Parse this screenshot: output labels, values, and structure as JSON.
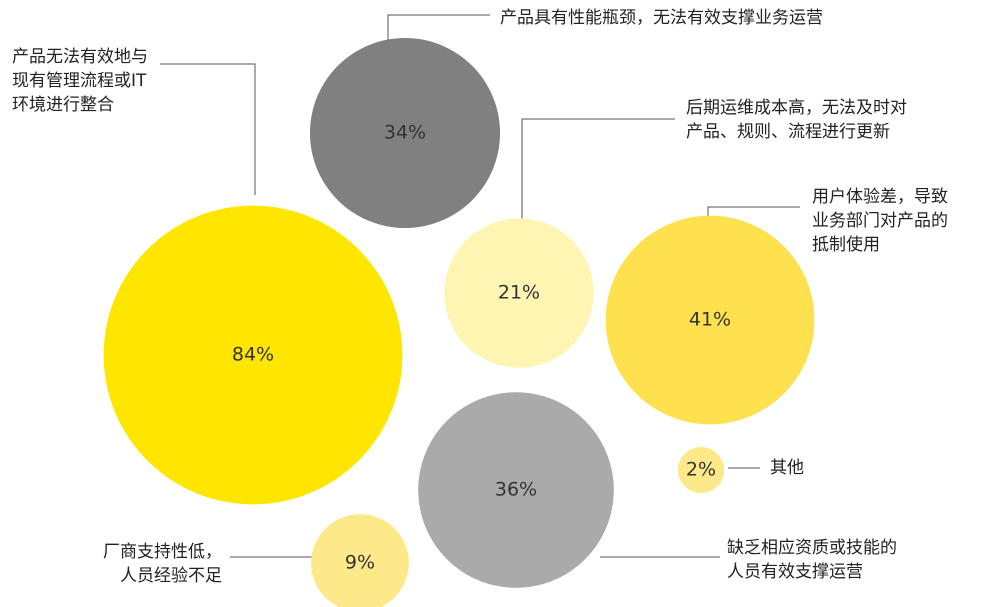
{
  "chart_data": {
    "type": "bubble",
    "items": [
      {
        "label_lines": [
          "产品无法有效地与",
          "现有管理流程或IT",
          "环境进行整合"
        ],
        "value": 84,
        "value_label": "84%",
        "color": "#ffe600"
      },
      {
        "label_lines": [
          "产品具有性能瓶颈，无法有效支撑业务运营"
        ],
        "value": 34,
        "value_label": "34%",
        "color": "#808080"
      },
      {
        "label_lines": [
          "后期运维成本高，无法及时对",
          "产品、规则、流程进行更新"
        ],
        "value": 21,
        "value_label": "21%",
        "color": "#fff5b3"
      },
      {
        "label_lines": [
          "用户体验差，导致",
          "业务部门对产品的",
          "抵制使用"
        ],
        "value": 41,
        "value_label": "41%",
        "color": "#ffe14f"
      },
      {
        "label_lines": [
          "缺乏相应资质或技能的",
          "人员有效支撑运营"
        ],
        "value": 36,
        "value_label": "36%",
        "color": "#aaaaaa"
      },
      {
        "label_lines": [
          "厂商支持性低，",
          "人员经验不足"
        ],
        "value": 9,
        "value_label": "9%",
        "color": "#fde98a"
      },
      {
        "label_lines": [
          "其他"
        ],
        "value": 2,
        "value_label": "2%",
        "color": "#fde98a"
      }
    ]
  }
}
